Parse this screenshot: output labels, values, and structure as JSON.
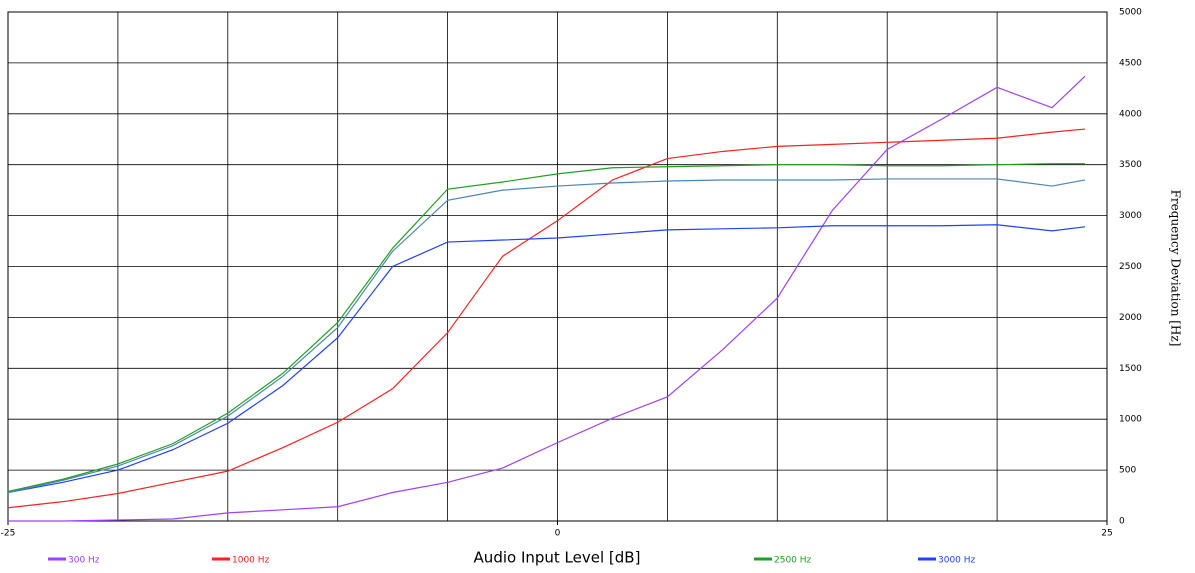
{
  "chart_data": {
    "type": "line",
    "x": [
      -25,
      -22.5,
      -20,
      -17.5,
      -15,
      -12.5,
      -10,
      -7.5,
      -5,
      -2.5,
      0,
      2.5,
      5,
      7.5,
      10,
      12.5,
      15,
      17.5,
      20,
      22.5,
      24
    ],
    "series": [
      {
        "name": "300 Hz",
        "color": "#a040ff",
        "values": [
          0,
          0,
          10,
          20,
          80,
          110,
          140,
          280,
          380,
          520,
          770,
          1010,
          1220,
          1680,
          2190,
          3050,
          3650,
          3950,
          4260,
          4060,
          4370
        ]
      },
      {
        "name": "1000 Hz",
        "color": "#ff2020",
        "values": [
          130,
          190,
          270,
          380,
          490,
          720,
          970,
          1300,
          1850,
          2600,
          2950,
          3350,
          3560,
          3630,
          3680,
          3700,
          3720,
          3740,
          3760,
          3820,
          3850
        ]
      },
      {
        "name": "2500 Hz",
        "color": "#20a020",
        "values": [
          290,
          410,
          560,
          760,
          1060,
          1450,
          1950,
          2680,
          3260,
          3330,
          3410,
          3470,
          3480,
          3490,
          3500,
          3500,
          3490,
          3490,
          3500,
          3510,
          3510
        ]
      },
      {
        "name": "3000 Hz",
        "color": "#2040ff",
        "values": [
          280,
          380,
          500,
          700,
          960,
          1330,
          1800,
          2500,
          2740,
          2760,
          2780,
          2820,
          2860,
          2870,
          2880,
          2900,
          2900,
          2900,
          2910,
          2850,
          2890
        ]
      },
      {
        "color": "#4a86b8",
        "values": [
          280,
          400,
          540,
          740,
          1030,
          1420,
          1900,
          2650,
          3150,
          3250,
          3290,
          3320,
          3340,
          3350,
          3350,
          3350,
          3360,
          3360,
          3360,
          3290,
          3350
        ]
      }
    ],
    "x_label": "Audio Input Level [dB]",
    "y_label": "Frequency Deviation [Hz]",
    "xlim": [
      -25,
      25
    ],
    "xticks": [
      -25,
      0,
      25
    ],
    "xgridlines": [
      -25,
      -20,
      -15,
      -10,
      -5,
      0,
      5,
      10,
      15,
      20,
      25
    ],
    "ylim": [
      0,
      5000
    ],
    "yticks": [
      0,
      500,
      1000,
      1500,
      2000,
      2500,
      3000,
      3500,
      4000,
      4500,
      5000
    ],
    "grid": true
  }
}
